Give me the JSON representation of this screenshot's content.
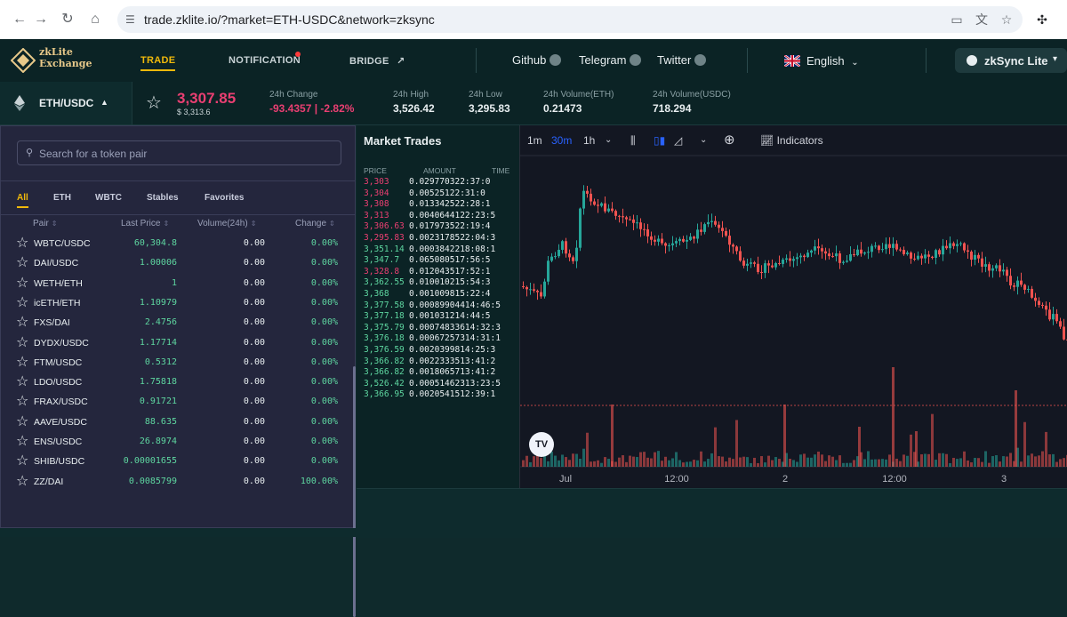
{
  "browser": {
    "url": "trade.zklite.io/?market=ETH-USDC&network=zksync"
  },
  "nav": {
    "logo_line1": "zkLite",
    "logo_line2": "Exchange",
    "trade": "TRADE",
    "notification": "NOTIFICATION",
    "bridge": "BRIDGE",
    "github": "Github",
    "telegram": "Telegram",
    "twitter": "Twitter",
    "language": "English",
    "network": "zkSync Lite"
  },
  "ticker": {
    "pair": "ETH/USDC",
    "price": "3,307.85",
    "usd_price": "$ 3,313.6",
    "stats": [
      {
        "label": "24h Change",
        "value": "-93.4357 | -2.82%"
      },
      {
        "label": "24h High",
        "value": "3,526.42"
      },
      {
        "label": "24h Low",
        "value": "3,295.83"
      },
      {
        "label": "24h Volume(ETH)",
        "value": "0.21473"
      },
      {
        "label": "24h Volume(USDC)",
        "value": "718.294"
      }
    ]
  },
  "pairs_panel": {
    "search_placeholder": "Search for a token pair",
    "tabs": [
      "All",
      "ETH",
      "WBTC",
      "Stables",
      "Favorites"
    ],
    "columns": [
      "Pair",
      "Last Price",
      "Volume(24h)",
      "Change"
    ],
    "rows": [
      {
        "pair": "WBTC/USDC",
        "last": "60,304.8",
        "vol": "0.00",
        "chg": "0.00%"
      },
      {
        "pair": "DAI/USDC",
        "last": "1.00006",
        "vol": "0.00",
        "chg": "0.00%"
      },
      {
        "pair": "WETH/ETH",
        "last": "1",
        "vol": "0.00",
        "chg": "0.00%"
      },
      {
        "pair": "icETH/ETH",
        "last": "1.10979",
        "vol": "0.00",
        "chg": "0.00%"
      },
      {
        "pair": "FXS/DAI",
        "last": "2.4756",
        "vol": "0.00",
        "chg": "0.00%"
      },
      {
        "pair": "DYDX/USDC",
        "last": "1.17714",
        "vol": "0.00",
        "chg": "0.00%"
      },
      {
        "pair": "FTM/USDC",
        "last": "0.5312",
        "vol": "0.00",
        "chg": "0.00%"
      },
      {
        "pair": "LDO/USDC",
        "last": "1.75818",
        "vol": "0.00",
        "chg": "0.00%"
      },
      {
        "pair": "FRAX/USDC",
        "last": "0.91721",
        "vol": "0.00",
        "chg": "0.00%"
      },
      {
        "pair": "AAVE/USDC",
        "last": "88.635",
        "vol": "0.00",
        "chg": "0.00%"
      },
      {
        "pair": "ENS/USDC",
        "last": "26.8974",
        "vol": "0.00",
        "chg": "0.00%"
      },
      {
        "pair": "SHIB/USDC",
        "last": "0.00001655",
        "vol": "0.00",
        "chg": "0.00%"
      },
      {
        "pair": "ZZ/DAI",
        "last": "0.0085799",
        "vol": "0.00",
        "chg": "100.00%"
      }
    ]
  },
  "market_trades": {
    "title": "Market Trades",
    "columns": [
      "PRICE",
      "AMOUNT",
      "TIME"
    ],
    "rows": [
      {
        "p": "3,303",
        "a": "0.029770322:37:0",
        "side": "dn"
      },
      {
        "p": "3,304",
        "a": "0.00525122:31:0",
        "side": "dn"
      },
      {
        "p": "3,308",
        "a": "0.013342522:28:1",
        "side": "dn"
      },
      {
        "p": "3,313",
        "a": "0.0040644122:23:5",
        "side": "dn"
      },
      {
        "p": "3,306.63",
        "a": "0.017973522:19:4",
        "side": "dn"
      },
      {
        "p": "3,295.83",
        "a": "0.0023178522:04:3",
        "side": "dn"
      },
      {
        "p": "3,351.14",
        "a": "0.0003842218:08:1",
        "side": "up"
      },
      {
        "p": "3,347.7",
        "a": "0.065080517:56:5",
        "side": "up"
      },
      {
        "p": "3,328.8",
        "a": "0.012043517:52:1",
        "side": "dn"
      },
      {
        "p": "3,362.55",
        "a": "0.010010215:54:3",
        "side": "up"
      },
      {
        "p": "3,368",
        "a": "0.001009815:22:4",
        "side": "up"
      },
      {
        "p": "3,377.58",
        "a": "0.00089904414:46:5",
        "side": "up"
      },
      {
        "p": "3,377.18",
        "a": "0.001031214:44:5",
        "side": "up"
      },
      {
        "p": "3,375.79",
        "a": "0.00074833614:32:3",
        "side": "up"
      },
      {
        "p": "3,376.18",
        "a": "0.00067257314:31:1",
        "side": "up"
      },
      {
        "p": "3,376.59",
        "a": "0.0020399814:25:3",
        "side": "up"
      },
      {
        "p": "3,366.82",
        "a": "0.0022333513:41:2",
        "side": "up"
      },
      {
        "p": "3,366.82",
        "a": "0.0018065713:41:2",
        "side": "up"
      },
      {
        "p": "3,526.42",
        "a": "0.00051462313:23:5",
        "side": "up"
      },
      {
        "p": "3,366.95",
        "a": "0.0020541512:39:1",
        "side": "up"
      }
    ]
  },
  "chart": {
    "intervals": [
      "1m",
      "30m",
      "1h"
    ],
    "active_interval": "30m",
    "indicators_label": "Indicators",
    "logo": "TV",
    "x_ticks": [
      "Jul",
      "12:00",
      "2",
      "12:00",
      "3"
    ],
    "up_color": "#26a69a",
    "down_color": "#ef5350"
  }
}
